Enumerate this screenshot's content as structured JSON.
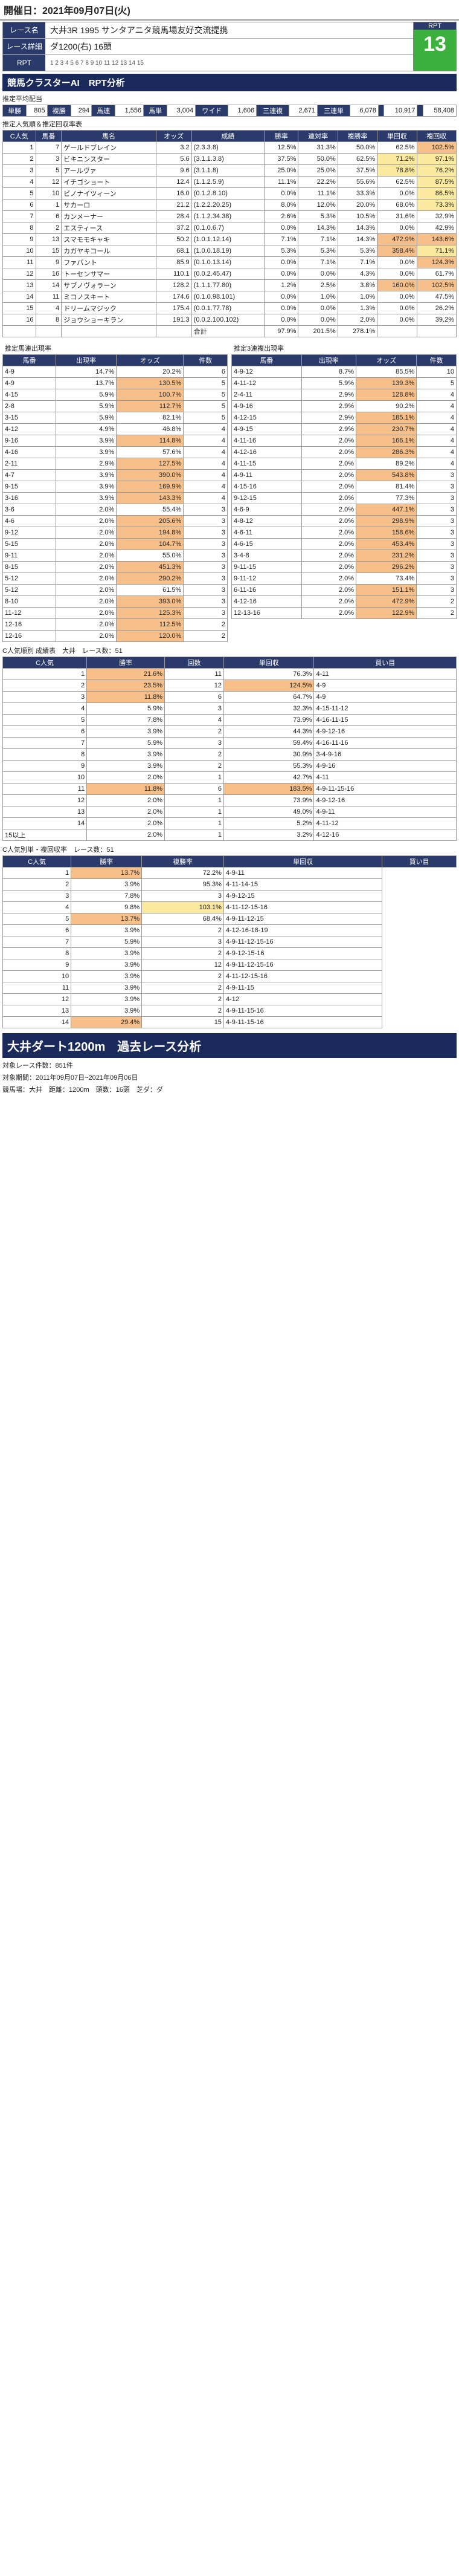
{
  "top": {
    "date": "開催日：2021年09月07日(火)"
  },
  "race": {
    "name_label": "レース名",
    "name": "大井3R 1995 サンタアニタ競馬場友好交流提携",
    "detail_label": "レース詳細",
    "detail": "ダ1200(右) 16頭",
    "rpt_label": "RPT",
    "rpt_value": "13"
  },
  "cluster": {
    "title": "競馬クラスターAI　RPT分析",
    "pred_label": "推定平均配当",
    "pred_row": [
      "単勝",
      "805",
      "複勝",
      "294",
      "馬連",
      "1,556",
      "馬単",
      "3,004",
      "ワイド",
      "1,606",
      "三連複",
      "2,671",
      "三連単",
      "6,078",
      "",
      "10,917",
      "",
      "58,408"
    ]
  },
  "popularity": {
    "title": "推定人気順＆推定回収率表",
    "headers": [
      "C人気",
      "馬番",
      "馬名",
      "オッズ",
      "成績",
      "勝率",
      "連対率",
      "複勝率",
      "単回収",
      "複回収"
    ],
    "rows": [
      [
        "1",
        "7",
        "ゲールドブレイン",
        "3.2",
        "(2.3.3.8)",
        "12.5%",
        "31.3%",
        "50.0%",
        "62.5%",
        "102.5%"
      ],
      [
        "2",
        "3",
        "ビキニンスター",
        "5.6",
        "(3.1.1.3.8)",
        "37.5%",
        "50.0%",
        "62.5%",
        "71.2%",
        "97.1%"
      ],
      [
        "3",
        "5",
        "アールヴァ",
        "9.6",
        "(3.1.1.8)",
        "25.0%",
        "25.0%",
        "37.5%",
        "78.8%",
        "76.2%"
      ],
      [
        "4",
        "12",
        "イチゴショート",
        "12.4",
        "(1.1.2.5.9)",
        "11.1%",
        "22.2%",
        "55.6%",
        "62.5%",
        "87.5%"
      ],
      [
        "5",
        "10",
        "ビノナイツィーン",
        "16.0",
        "(0.1.2.8.10)",
        "0.0%",
        "11.1%",
        "33.3%",
        "0.0%",
        "86.5%"
      ],
      [
        "6",
        "1",
        "サカーロ",
        "21.2",
        "(1.2.2.20.25)",
        "8.0%",
        "12.0%",
        "20.0%",
        "68.0%",
        "73.3%"
      ],
      [
        "7",
        "6",
        "カンメーナー",
        "28.4",
        "(1.1.2.34.38)",
        "2.6%",
        "5.3%",
        "10.5%",
        "31.6%",
        "32.9%"
      ],
      [
        "8",
        "2",
        "エスティース",
        "37.2",
        "(0.1.0.6.7)",
        "0.0%",
        "14.3%",
        "14.3%",
        "0.0%",
        "42.9%"
      ],
      [
        "9",
        "13",
        "スマモモキャキ",
        "50.2",
        "(1.0.1.12.14)",
        "7.1%",
        "7.1%",
        "14.3%",
        "472.9%",
        "143.6%"
      ],
      [
        "10",
        "15",
        "カガヤキコール",
        "68.1",
        "(1.0.0.18.19)",
        "5.3%",
        "5.3%",
        "5.3%",
        "358.4%",
        "71.1%"
      ],
      [
        "11",
        "9",
        "ファバント",
        "85.9",
        "(0.1.0.13.14)",
        "0.0%",
        "7.1%",
        "7.1%",
        "0.0%",
        "124.3%"
      ],
      [
        "12",
        "16",
        "トーセンサマー",
        "110.1",
        "(0.0.2.45.47)",
        "0.0%",
        "0.0%",
        "4.3%",
        "0.0%",
        "61.7%"
      ],
      [
        "13",
        "14",
        "サブノヴォラーン",
        "128.2",
        "(1.1.1.77.80)",
        "1.2%",
        "2.5%",
        "3.8%",
        "160.0%",
        "102.5%"
      ],
      [
        "14",
        "11",
        "ミコノスキート",
        "174.6",
        "(0.1.0.98.101)",
        "0.0%",
        "1.0%",
        "1.0%",
        "0.0%",
        "47.5%"
      ],
      [
        "15",
        "4",
        "ドリームマジック",
        "175.4",
        "(0.0.1.77.78)",
        "0.0%",
        "0.0%",
        "1.3%",
        "0.0%",
        "26.2%"
      ],
      [
        "16",
        "8",
        "ジョウショーキラン",
        "191.3",
        "(0.0.2.100.102)",
        "0.0%",
        "0.0%",
        "2.0%",
        "0.0%",
        "39.2%"
      ]
    ],
    "total": [
      "",
      "",
      "",
      "",
      "合計",
      "97.9%",
      "201.5%",
      "278.1%",
      "",
      ""
    ]
  },
  "combos": {
    "left_title": "推定馬連出現率",
    "right_title": "推定3連複出現率",
    "headers": [
      "馬番",
      "出現率",
      "オッズ",
      "件数"
    ],
    "left": [
      [
        "4-9",
        "14.7%",
        "20.2%",
        "6"
      ],
      [
        "4-9",
        "13.7%",
        "130.5%",
        "5"
      ],
      [
        "4-15",
        "5.9%",
        "100.7%",
        "5"
      ],
      [
        "2-8",
        "5.9%",
        "112.7%",
        "5"
      ],
      [
        "3-15",
        "5.9%",
        "82.1%",
        "5"
      ],
      [
        "4-12",
        "4.9%",
        "46.8%",
        "4"
      ],
      [
        "9-16",
        "3.9%",
        "114.8%",
        "4"
      ],
      [
        "4-16",
        "3.9%",
        "57.6%",
        "4"
      ],
      [
        "2-11",
        "2.9%",
        "127.5%",
        "4"
      ],
      [
        "4-7",
        "3.9%",
        "390.0%",
        "4"
      ],
      [
        "9-15",
        "3.9%",
        "169.9%",
        "4"
      ],
      [
        "3-16",
        "3.9%",
        "143.3%",
        "4"
      ],
      [
        "3-6",
        "2.0%",
        "55.4%",
        "3"
      ],
      [
        "4-6",
        "2.0%",
        "205.6%",
        "3"
      ],
      [
        "9-12",
        "2.0%",
        "194.8%",
        "3"
      ],
      [
        "5-15",
        "2.0%",
        "104.7%",
        "3"
      ],
      [
        "9-11",
        "2.0%",
        "55.0%",
        "3"
      ],
      [
        "8-15",
        "2.0%",
        "451.3%",
        "3"
      ],
      [
        "5-12",
        "2.0%",
        "290.2%",
        "3"
      ],
      [
        "5-12",
        "2.0%",
        "61.5%",
        "3"
      ],
      [
        "8-10",
        "2.0%",
        "393.0%",
        "3"
      ],
      [
        "11-12",
        "2.0%",
        "125.3%",
        "3"
      ],
      [
        "12-16",
        "2.0%",
        "112.5%",
        "2"
      ],
      [
        "12-16",
        "2.0%",
        "120.0%",
        "2"
      ]
    ],
    "right": [
      [
        "4-9-12",
        "8.7%",
        "85.5%",
        "10"
      ],
      [
        "4-11-12",
        "5.9%",
        "139.3%",
        "5"
      ],
      [
        "2-4-11",
        "2.9%",
        "128.8%",
        "4"
      ],
      [
        "4-9-16",
        "2.9%",
        "90.2%",
        "4"
      ],
      [
        "4-12-15",
        "2.9%",
        "185.1%",
        "4"
      ],
      [
        "4-9-15",
        "2.9%",
        "230.7%",
        "4"
      ],
      [
        "4-11-16",
        "2.0%",
        "166.1%",
        "4"
      ],
      [
        "4-12-16",
        "2.0%",
        "286.3%",
        "4"
      ],
      [
        "4-11-15",
        "2.0%",
        "89.2%",
        "4"
      ],
      [
        "4-9-11",
        "2.0%",
        "543.8%",
        "3"
      ],
      [
        "4-15-16",
        "2.0%",
        "81.4%",
        "3"
      ],
      [
        "9-12-15",
        "2.0%",
        "77.3%",
        "3"
      ],
      [
        "4-6-9",
        "2.0%",
        "447.1%",
        "3"
      ],
      [
        "4-8-12",
        "2.0%",
        "298.9%",
        "3"
      ],
      [
        "4-6-11",
        "2.0%",
        "158.6%",
        "3"
      ],
      [
        "4-6-15",
        "2.0%",
        "453.4%",
        "3"
      ],
      [
        "3-4-8",
        "2.0%",
        "231.2%",
        "3"
      ],
      [
        "9-11-15",
        "2.0%",
        "296.2%",
        "3"
      ],
      [
        "9-11-12",
        "2.0%",
        "73.4%",
        "3"
      ],
      [
        "6-11-16",
        "2.0%",
        "151.1%",
        "3"
      ],
      [
        "4-12-16",
        "2.0%",
        "472.9%",
        "2"
      ],
      [
        "12-13-16",
        "2.0%",
        "122.9%",
        "2"
      ]
    ]
  },
  "odds_table": {
    "title": "C人気順別 成績表　大井　レース数：51",
    "headers": [
      "C人気",
      "勝率",
      "回数",
      "単回収",
      "買い目"
    ],
    "rows": [
      [
        "1",
        "21.6%",
        "11",
        "76.3%",
        "4-11"
      ],
      [
        "2",
        "23.5%",
        "12",
        "124.5%",
        "4-9"
      ],
      [
        "3",
        "11.8%",
        "6",
        "64.7%",
        "4-9"
      ],
      [
        "4",
        "5.9%",
        "3",
        "32.3%",
        "4-15-11-12"
      ],
      [
        "5",
        "7.8%",
        "4",
        "73.9%",
        "4-16-11-15"
      ],
      [
        "6",
        "3.9%",
        "2",
        "44.3%",
        "4-9-12-16"
      ],
      [
        "7",
        "5.9%",
        "3",
        "59.4%",
        "4-16-11-16"
      ],
      [
        "8",
        "3.9%",
        "2",
        "30.9%",
        "3-4-9-16"
      ],
      [
        "9",
        "3.9%",
        "2",
        "55.3%",
        "4-9-16"
      ],
      [
        "10",
        "2.0%",
        "1",
        "42.7%",
        "4-11"
      ],
      [
        "11",
        "11.8%",
        "6",
        "183.5%",
        "4-9-11-15-16"
      ],
      [
        "12",
        "2.0%",
        "1",
        "73.9%",
        "4-9-12-16"
      ],
      [
        "13",
        "2.0%",
        "1",
        "49.0%",
        "4-9-11"
      ],
      [
        "14",
        "2.0%",
        "1",
        "5.2%",
        "4-11-12"
      ],
      [
        "15以上",
        "2.0%",
        "1",
        "3.2%",
        "4-12-16"
      ]
    ]
  },
  "mini_table": {
    "title": "C人気別単・複回収率　レース数：51",
    "headers": [
      "C人気",
      "勝率",
      "複勝率",
      "単回収",
      "買い目"
    ],
    "rows": [
      [
        "1",
        "13.7%",
        "72.2%",
        "4-9-11"
      ],
      [
        "2",
        "3.9%",
        "95.3%",
        "4-11-14-15"
      ],
      [
        "3",
        "7.8%",
        "3",
        "4-9-12-15"
      ],
      [
        "4",
        "9.8%",
        "103.1%",
        "4-11-12-15-16"
      ],
      [
        "5",
        "13.7%",
        "68.4%",
        "4-9-11-12-15"
      ],
      [
        "6",
        "3.9%",
        "2",
        "4-12-16-18-19"
      ],
      [
        "7",
        "5.9%",
        "3",
        "4-9-11-12-15-16"
      ],
      [
        "8",
        "3.9%",
        "2",
        "4-9-12-15-16"
      ],
      [
        "9",
        "3.9%",
        "12",
        "4-9-11-12-15-16"
      ],
      [
        "10",
        "3.9%",
        "2",
        "4-11-12-15-16"
      ],
      [
        "11",
        "3.9%",
        "2",
        "4-9-11-15"
      ],
      [
        "12",
        "3.9%",
        "2",
        "4-12"
      ],
      [
        "13",
        "3.9%",
        "2",
        "4-9-11-15-16"
      ],
      [
        "14",
        "29.4%",
        "15",
        "4-9-11-15-16"
      ]
    ]
  },
  "past": {
    "title": "大井ダート1200m　過去レース分析",
    "meta1": "対象レース件数：851件",
    "meta2": "対象期間：2011年09月07日~2021年09月06日",
    "meta3": "競馬場：大井　距離：1200m　頭数：16頭　芝ダ：ダ"
  }
}
